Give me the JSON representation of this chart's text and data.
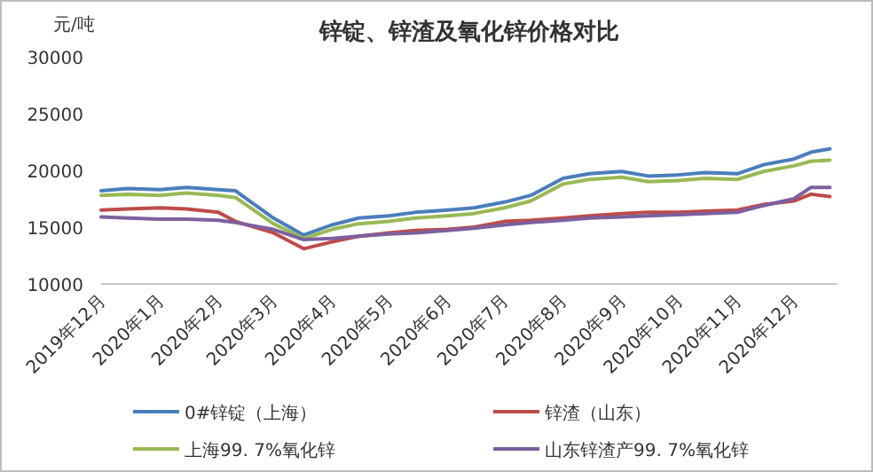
{
  "chart_data": {
    "type": "line",
    "title": "锌锭、锌渣及氧化锌价格对比",
    "ylabel": "元/吨",
    "legend": "bottom",
    "x": [
      "2019-12-01",
      "2019-12-15",
      "2020-01-01",
      "2020-01-15",
      "2020-02-01",
      "2020-02-10",
      "2020-03-01",
      "2020-03-17",
      "2020-04-01",
      "2020-04-15",
      "2020-05-01",
      "2020-05-15",
      "2020-06-01",
      "2020-06-15",
      "2020-07-01",
      "2020-07-15",
      "2020-08-01",
      "2020-08-15",
      "2020-09-01",
      "2020-09-15",
      "2020-10-01",
      "2020-10-15",
      "2020-11-01",
      "2020-11-15",
      "2020-12-01",
      "2020-12-10",
      "2020-12-20"
    ],
    "xlim": [
      "2019-12-01",
      "2020-12-24"
    ],
    "xticks": [
      {
        "value": "2019-12-01",
        "label": "2019年12月"
      },
      {
        "value": "2020-01-01",
        "label": "2020年1月"
      },
      {
        "value": "2020-02-01",
        "label": "2020年2月"
      },
      {
        "value": "2020-03-01",
        "label": "2020年3月"
      },
      {
        "value": "2020-04-01",
        "label": "2020年4月"
      },
      {
        "value": "2020-05-01",
        "label": "2020年5月"
      },
      {
        "value": "2020-06-01",
        "label": "2020年6月"
      },
      {
        "value": "2020-07-01",
        "label": "2020年7月"
      },
      {
        "value": "2020-08-01",
        "label": "2020年8月"
      },
      {
        "value": "2020-09-01",
        "label": "2020年9月"
      },
      {
        "value": "2020-10-01",
        "label": "2020年10月"
      },
      {
        "value": "2020-11-01",
        "label": "2020年11月"
      },
      {
        "value": "2020-12-01",
        "label": "2020年12月"
      }
    ],
    "ylim": [
      10000,
      30000
    ],
    "yticks": [
      10000,
      15000,
      20000,
      25000,
      30000
    ],
    "series": [
      {
        "name": "0#锌锭（上海）",
        "color": "#4a7ebb",
        "values": [
          18200,
          18400,
          18300,
          18500,
          18300,
          18200,
          15800,
          14300,
          15200,
          15800,
          16000,
          16300,
          16500,
          16700,
          17200,
          17800,
          19300,
          19700,
          19900,
          19500,
          19600,
          19800,
          19700,
          20500,
          21000,
          21600,
          21900
        ]
      },
      {
        "name": "锌渣（山东）",
        "color": "#be4b48",
        "values": [
          16500,
          16600,
          16700,
          16600,
          16300,
          15500,
          14500,
          13100,
          13700,
          14200,
          14500,
          14700,
          14800,
          15000,
          15500,
          15600,
          15800,
          16000,
          16200,
          16300,
          16300,
          16400,
          16500,
          17000,
          17300,
          17900,
          17700
        ]
      },
      {
        "name": "上海99. 7%氧化锌",
        "color": "#98b954",
        "values": [
          17800,
          17900,
          17800,
          18000,
          17800,
          17600,
          15300,
          14000,
          14800,
          15300,
          15500,
          15800,
          16000,
          16200,
          16700,
          17300,
          18800,
          19200,
          19400,
          19000,
          19100,
          19300,
          19200,
          19900,
          20400,
          20800,
          20900
        ]
      },
      {
        "name": "山东锌渣产99. 7%氧化锌",
        "color": "#7d60a0",
        "values": [
          15900,
          15800,
          15700,
          15700,
          15600,
          15400,
          14800,
          13900,
          14000,
          14200,
          14400,
          14500,
          14700,
          14900,
          15200,
          15400,
          15600,
          15800,
          15900,
          16000,
          16100,
          16200,
          16300,
          16900,
          17500,
          18500,
          18500
        ]
      }
    ]
  }
}
